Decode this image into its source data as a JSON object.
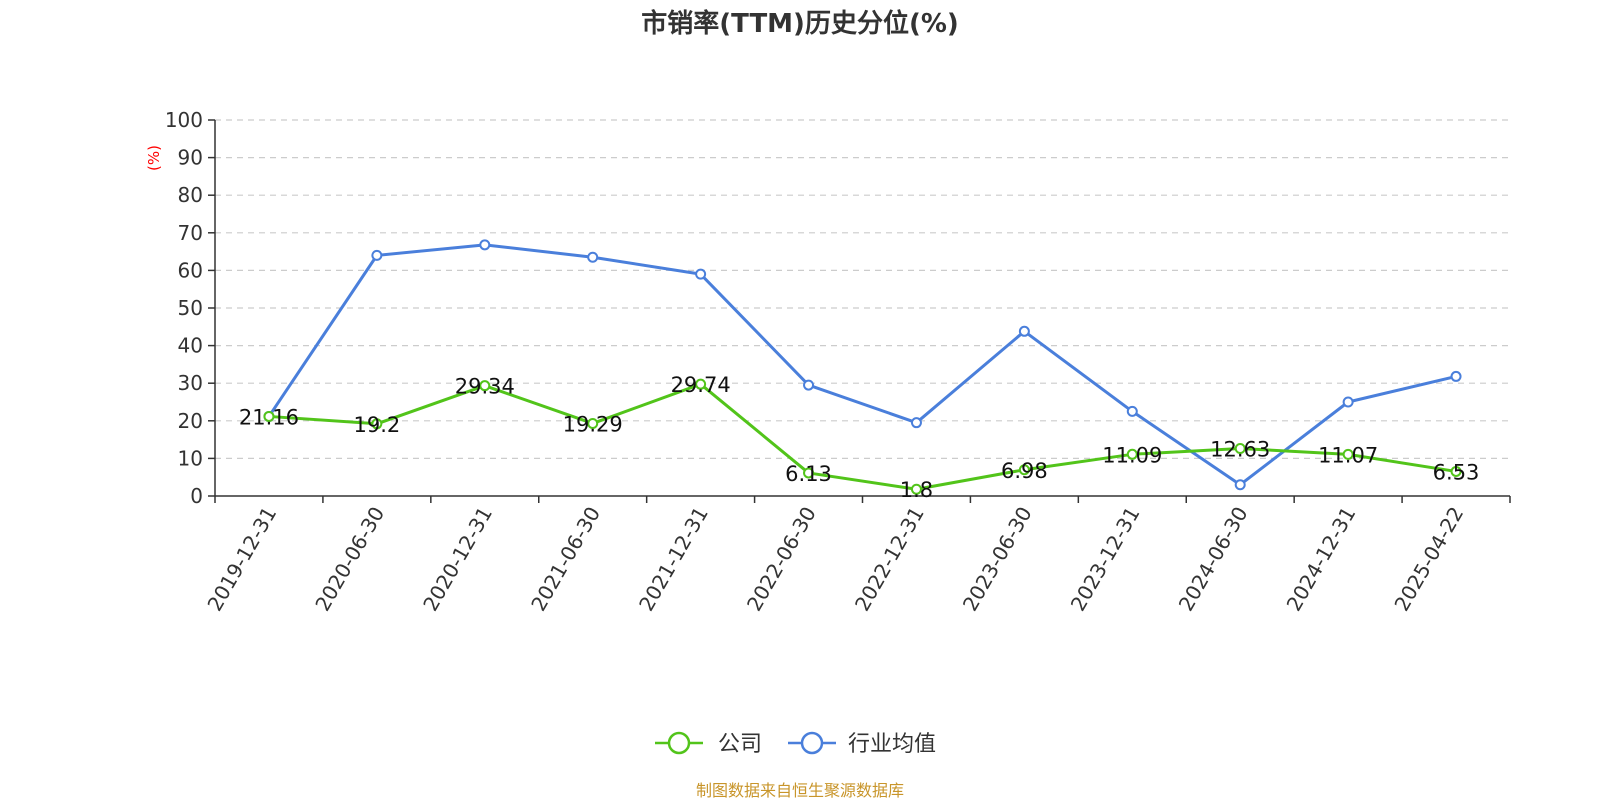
{
  "chart_data": {
    "type": "line",
    "title": "市销率(TTM)历史分位(%)",
    "ylabel": "(%)",
    "xlabel": "",
    "ylim": [
      0,
      100
    ],
    "yticks": [
      0,
      10,
      20,
      30,
      40,
      50,
      60,
      70,
      80,
      90,
      100
    ],
    "grid": true,
    "legend_position": "bottom",
    "categories": [
      "2019-12-31",
      "2020-06-30",
      "2020-12-31",
      "2021-06-30",
      "2021-12-31",
      "2022-06-30",
      "2022-12-31",
      "2023-06-30",
      "2023-12-31",
      "2024-06-30",
      "2024-12-31",
      "2025-04-22"
    ],
    "series": [
      {
        "name": "公司",
        "color": "#52c41a",
        "values": [
          21.16,
          19.2,
          29.34,
          19.29,
          29.74,
          6.13,
          1.8,
          6.98,
          11.09,
          12.63,
          11.07,
          6.53
        ],
        "labels": [
          "21.16",
          "19.2",
          "29.34",
          "19.29",
          "29.74",
          "6.13",
          "1.8",
          "6.98",
          "11.09",
          "12.63",
          "11.07",
          "6.53"
        ]
      },
      {
        "name": "行业均值",
        "color": "#4a7fdb",
        "values": [
          21.16,
          64.0,
          66.8,
          63.5,
          59.0,
          29.5,
          19.5,
          43.8,
          22.5,
          3.0,
          25.0,
          31.8
        ]
      }
    ],
    "source": "制图数据来自恒生聚源数据库"
  }
}
